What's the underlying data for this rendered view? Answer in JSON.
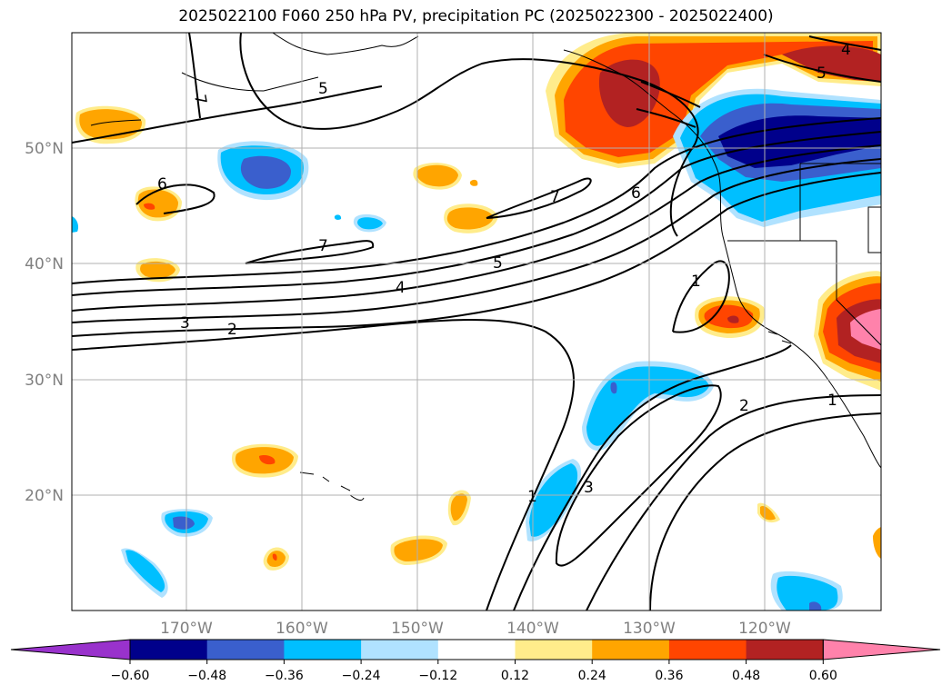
{
  "title": "2025022100 F060 250 hPa PV, precipitation PC (2025022300 - 2025022400)",
  "lat_labels": [
    "50°N",
    "40°N",
    "30°N",
    "20°N"
  ],
  "lon_labels": [
    "170°W",
    "160°W",
    "150°W",
    "140°W",
    "130°W",
    "120°W"
  ],
  "colorbar": {
    "colors": [
      "#9932cc",
      "#00008b",
      "#3a5fcd",
      "#00bfff",
      "#b0e2ff",
      "#ffffff",
      "#ffec8b",
      "#ffa500",
      "#ff4500",
      "#b22222",
      "#ff82ab"
    ],
    "tick_labels": [
      "−0.60",
      "−0.48",
      "−0.36",
      "−0.24",
      "−0.12",
      "0.12",
      "0.24",
      "0.36",
      "0.48",
      "0.60"
    ]
  },
  "contour_labels": [
    "7",
    "5",
    "6",
    "7",
    "7",
    "6",
    "5",
    "4",
    "3",
    "2",
    "4",
    "5",
    "1",
    "1",
    "2",
    "3",
    "1"
  ]
}
